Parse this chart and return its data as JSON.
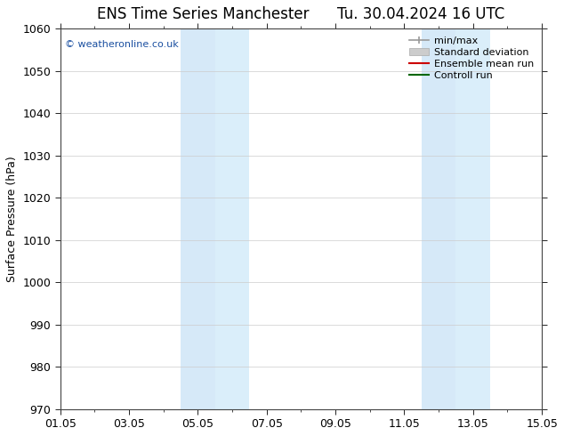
{
  "title_left": "ENS Time Series Manchester",
  "title_right": "Tu. 30.04.2024 16 UTC",
  "ylabel": "Surface Pressure (hPa)",
  "ylim": [
    970,
    1060
  ],
  "yticks": [
    970,
    980,
    990,
    1000,
    1010,
    1020,
    1030,
    1040,
    1050,
    1060
  ],
  "xlim_days": [
    0,
    14
  ],
  "xtick_positions": [
    0,
    2,
    4,
    6,
    8,
    10,
    12,
    14
  ],
  "xtick_labels": [
    "01.05",
    "03.05",
    "05.05",
    "07.05",
    "09.05",
    "11.05",
    "13.05",
    "15.05"
  ],
  "shaded_bands": [
    {
      "xstart": 3.5,
      "xend": 4.5,
      "color": "#d6e9f8"
    },
    {
      "xstart": 4.5,
      "xend": 5.5,
      "color": "#daeefa"
    },
    {
      "xstart": 10.5,
      "xend": 11.5,
      "color": "#d6e9f8"
    },
    {
      "xstart": 11.5,
      "xend": 12.5,
      "color": "#daeefa"
    }
  ],
  "watermark": "© weatheronline.co.uk",
  "legend_items": [
    {
      "label": "min/max",
      "color": "#999999",
      "lw": 1.2,
      "type": "line_with_caps"
    },
    {
      "label": "Standard deviation",
      "color": "#cccccc",
      "lw": 8,
      "type": "thick_line"
    },
    {
      "label": "Ensemble mean run",
      "color": "#cc0000",
      "lw": 1.5,
      "type": "line"
    },
    {
      "label": "Controll run",
      "color": "#006600",
      "lw": 1.5,
      "type": "line"
    }
  ],
  "grid_color": "#cccccc",
  "background_color": "#ffffff",
  "title_fontsize": 12,
  "tick_fontsize": 9,
  "ylabel_fontsize": 9,
  "legend_fontsize": 8
}
